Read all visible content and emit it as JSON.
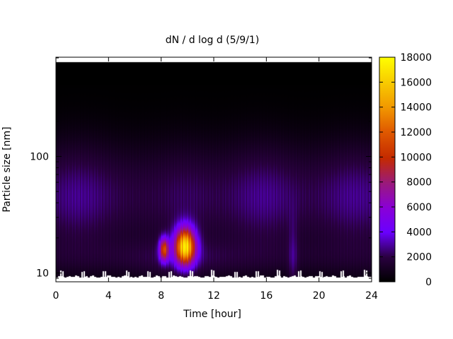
{
  "chart_data": {
    "type": "heatmap",
    "title": "dN / d log d (5/9/1)",
    "xlabel": "Time [hour]",
    "ylabel": "Particle size [nm]",
    "xlim": [
      0,
      24
    ],
    "x_ticks": [
      0,
      4,
      8,
      12,
      16,
      20,
      24
    ],
    "x_tick_labels": [
      "0",
      "4",
      "8",
      "12",
      "16",
      "20",
      "24"
    ],
    "y_scale": "log",
    "ylim": [
      8.4,
      710
    ],
    "y_ticks": [
      10,
      100
    ],
    "y_tick_labels": [
      "10",
      "100"
    ],
    "colorbar": {
      "label": "",
      "range": [
        0,
        18000
      ],
      "ticks": [
        0,
        2000,
        4000,
        6000,
        8000,
        10000,
        12000,
        14000,
        16000,
        18000
      ],
      "tick_labels": [
        "0",
        "2000",
        "4000",
        "6000",
        "8000",
        "10000",
        "12000",
        "14000",
        "16000",
        "18000"
      ],
      "colormap": "gnuplot default (black-purple-red-orange-yellow)",
      "colors": [
        "#000000",
        "#3d00a6",
        "#6a00ff",
        "#9a1aa6",
        "#c42a00",
        "#e05a00",
        "#f2a800",
        "#ffff00"
      ]
    },
    "features": [
      {
        "description": "background distribution",
        "peak_size_nm": 45,
        "typical_value": 3000
      },
      {
        "description": "growth event",
        "time_h": 9.8,
        "size_nm": 17,
        "peak_value": 16500
      },
      {
        "description": "secondary burst",
        "time_h": 8.2,
        "size_nm": 16,
        "peak_value": 10000
      }
    ],
    "grid": false,
    "legend": "colorbar-right"
  }
}
